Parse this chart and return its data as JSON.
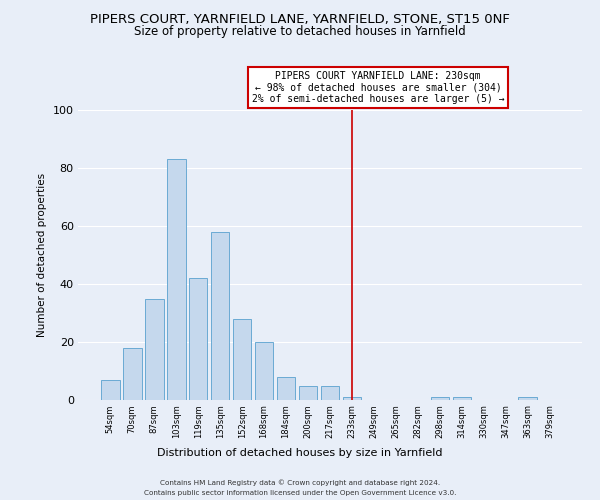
{
  "title": "PIPERS COURT, YARNFIELD LANE, YARNFIELD, STONE, ST15 0NF",
  "subtitle": "Size of property relative to detached houses in Yarnfield",
  "xlabel": "Distribution of detached houses by size in Yarnfield",
  "ylabel": "Number of detached properties",
  "bar_labels": [
    "54sqm",
    "70sqm",
    "87sqm",
    "103sqm",
    "119sqm",
    "135sqm",
    "152sqm",
    "168sqm",
    "184sqm",
    "200sqm",
    "217sqm",
    "233sqm",
    "249sqm",
    "265sqm",
    "282sqm",
    "298sqm",
    "314sqm",
    "330sqm",
    "347sqm",
    "363sqm",
    "379sqm"
  ],
  "bar_heights": [
    7,
    18,
    35,
    83,
    42,
    58,
    28,
    20,
    8,
    5,
    5,
    1,
    0,
    0,
    0,
    1,
    1,
    0,
    0,
    1,
    0
  ],
  "bar_color": "#c5d8ed",
  "bar_edge_color": "#6aaad4",
  "vline_x_index": 11,
  "vline_color": "#cc0000",
  "annotation_title": "PIPERS COURT YARNFIELD LANE: 230sqm",
  "annotation_line1": "← 98% of detached houses are smaller (304)",
  "annotation_line2": "2% of semi-detached houses are larger (5) →",
  "annotation_box_color": "#ffffff",
  "annotation_box_edge": "#cc0000",
  "ylim": [
    0,
    100
  ],
  "yticks": [
    0,
    20,
    40,
    60,
    80,
    100
  ],
  "footer1": "Contains HM Land Registry data © Crown copyright and database right 2024.",
  "footer2": "Contains public sector information licensed under the Open Government Licence v3.0.",
  "background_color": "#e8eef8",
  "grid_color": "#ffffff",
  "title_fontsize": 9.5,
  "subtitle_fontsize": 8.5
}
